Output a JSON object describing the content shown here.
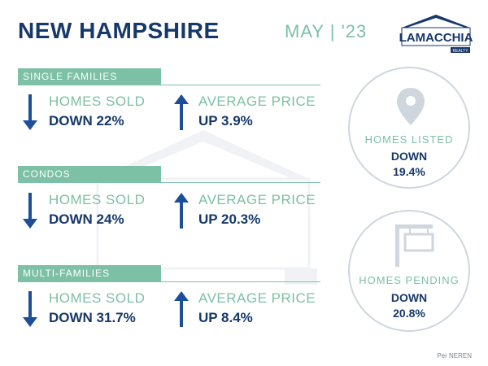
{
  "header": {
    "title": "NEW HAMPSHIRE",
    "date": "MAY | '23",
    "logo_text": "LAMACCHIA",
    "logo_sub": "REALTY"
  },
  "sections": [
    {
      "label": "SINGLE FAMILIES",
      "homes_sold": {
        "label": "HOMES SOLD",
        "value": "DOWN 22%",
        "direction": "down"
      },
      "average_price": {
        "label": "AVERAGE PRICE",
        "value": "UP 3.9%",
        "direction": "up"
      }
    },
    {
      "label": "CONDOS",
      "homes_sold": {
        "label": "HOMES SOLD",
        "value": "DOWN 24%",
        "direction": "down"
      },
      "average_price": {
        "label": "AVERAGE PRICE",
        "value": "UP 20.3%",
        "direction": "up"
      }
    },
    {
      "label": "MULTI-FAMILIES",
      "homes_sold": {
        "label": "HOMES SOLD",
        "value": "DOWN 31.7%",
        "direction": "down"
      },
      "average_price": {
        "label": "AVERAGE PRICE",
        "value": "UP 8.4%",
        "direction": "up"
      }
    }
  ],
  "homes_listed": {
    "label": "HOMES LISTED",
    "value_line1": "DOWN",
    "value_line2": "19.4%",
    "icon": "map-pin-icon"
  },
  "homes_pending": {
    "label": "HOMES PENDING",
    "value_line1": "DOWN",
    "value_line2": "20.8%",
    "icon": "sale-sign-icon"
  },
  "source": "Per NEREN",
  "colors": {
    "navy": "#16386a",
    "accent": "#7cc0a5",
    "arrow": "#1c4e9a",
    "circle_border": "#cfd6dd"
  }
}
